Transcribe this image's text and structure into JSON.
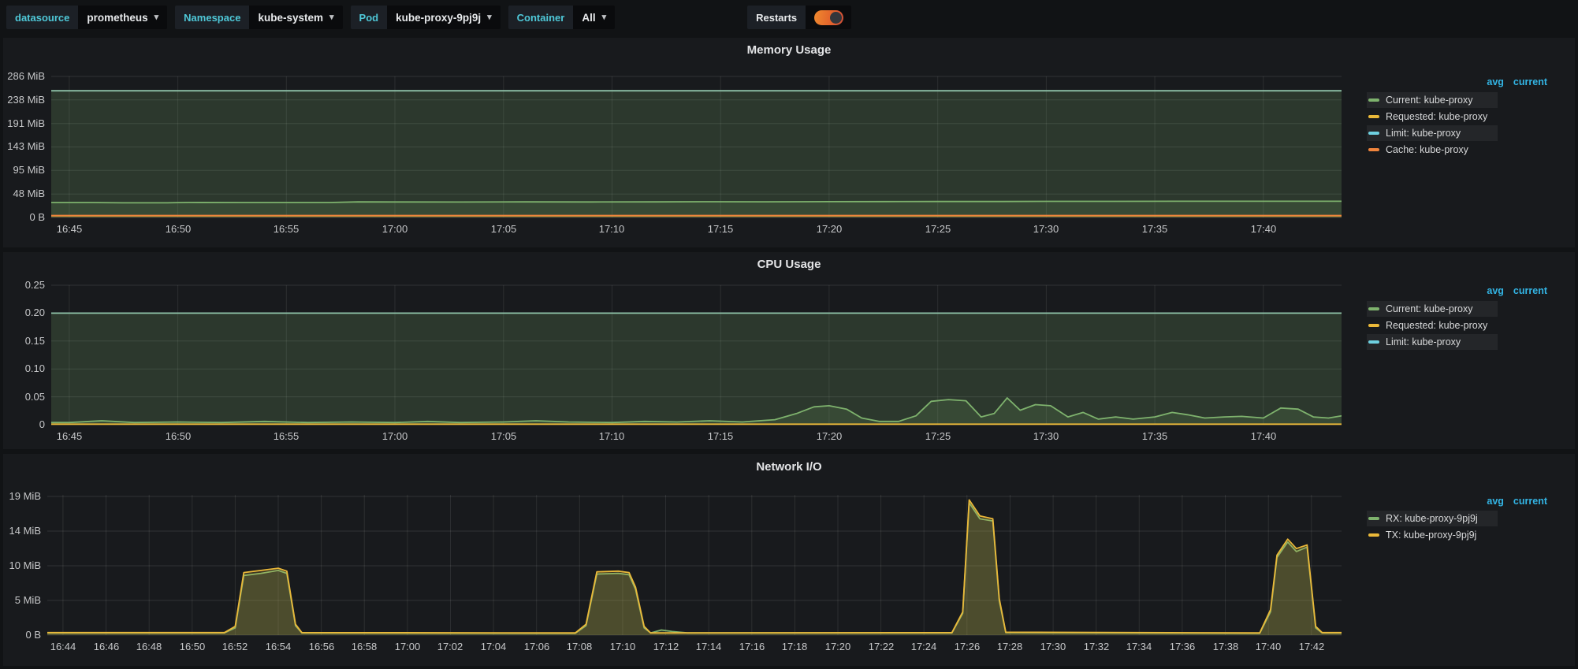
{
  "topbar": {
    "controls": [
      {
        "label": "datasource",
        "value": "prometheus"
      },
      {
        "label": "Namespace",
        "value": "kube-system"
      },
      {
        "label": "Pod",
        "value": "kube-proxy-9pj9j"
      },
      {
        "label": "Container",
        "value": "All"
      }
    ],
    "restarts": {
      "label": "Restarts",
      "enabled": true
    }
  },
  "legend_header": [
    "avg",
    "current"
  ],
  "colors": {
    "green": "#7EB26D",
    "yellow": "#EAB839",
    "cyan": "#6ED0E0",
    "orange": "#EF843C",
    "limit_line": "#8FC3A9",
    "link": "#33B5E5",
    "var_label": "#4FC8D8"
  },
  "chart_data": [
    {
      "type": "area",
      "title": "Memory Usage",
      "y_unit": "MiB",
      "x_unit": "minutes after 16:00",
      "ymax": 286.1,
      "xmin": 44.17,
      "xmax": 103.6,
      "grid": true,
      "legend_position": "right",
      "yticks": [
        {
          "v": 0,
          "label": "0 B"
        },
        {
          "v": 47.7,
          "label": "48 MiB"
        },
        {
          "v": 95.4,
          "label": "95 MiB"
        },
        {
          "v": 143.1,
          "label": "143 MiB"
        },
        {
          "v": 190.7,
          "label": "191 MiB"
        },
        {
          "v": 238.4,
          "label": "238 MiB"
        },
        {
          "v": 286.1,
          "label": "286 MiB"
        }
      ],
      "xticks": [
        {
          "m": 45,
          "label": "16:45"
        },
        {
          "m": 50,
          "label": "16:50"
        },
        {
          "m": 55,
          "label": "16:55"
        },
        {
          "m": 60,
          "label": "17:00"
        },
        {
          "m": 65,
          "label": "17:05"
        },
        {
          "m": 70,
          "label": "17:10"
        },
        {
          "m": 75,
          "label": "17:15"
        },
        {
          "m": 80,
          "label": "17:20"
        },
        {
          "m": 85,
          "label": "17:25"
        },
        {
          "m": 90,
          "label": "17:30"
        },
        {
          "m": 95,
          "label": "17:35"
        },
        {
          "m": 100,
          "label": "17:40"
        }
      ],
      "legend": [
        {
          "label": "Current: kube-proxy",
          "color": "#7EB26D"
        },
        {
          "label": "Requested: kube-proxy",
          "color": "#EAB839"
        },
        {
          "label": "Limit: kube-proxy",
          "color": "#6ED0E0"
        },
        {
          "label": "Cache: kube-proxy",
          "color": "#EF843C"
        }
      ],
      "series": [
        {
          "name": "Limit: kube-proxy",
          "line": "#8FC3A9",
          "fill": "#7EB26D",
          "fill_opacity": 0.2,
          "points": [
            [
              44.17,
              257
            ],
            [
              103.6,
              257
            ]
          ]
        },
        {
          "name": "Current: kube-proxy",
          "line": "#7EB26D",
          "fill": "#7EB26D",
          "fill_opacity": 0.14,
          "points": [
            [
              44.17,
              30.3
            ],
            [
              46,
              30.3
            ],
            [
              47.5,
              29.8
            ],
            [
              49.5,
              29.8
            ],
            [
              50.5,
              30.5
            ],
            [
              53,
              30.3
            ],
            [
              55,
              30.3
            ],
            [
              57,
              30.4
            ],
            [
              58.3,
              31.6
            ],
            [
              60,
              31.5
            ],
            [
              63,
              31.4
            ],
            [
              66,
              31.6
            ],
            [
              69,
              31.5
            ],
            [
              72,
              31.6
            ],
            [
              74.5,
              31.9
            ],
            [
              77,
              31.8
            ],
            [
              80,
              32.1
            ],
            [
              82.5,
              32.3
            ],
            [
              85,
              32.5
            ],
            [
              88,
              32.5
            ],
            [
              90,
              32.8
            ],
            [
              93,
              32.8
            ],
            [
              96,
              32.9
            ],
            [
              99,
              33
            ],
            [
              102,
              33
            ],
            [
              103.6,
              33
            ]
          ]
        },
        {
          "name": "Requested: kube-proxy",
          "line": "#EAB839",
          "fill": "#EAB839",
          "fill_opacity": 0.08,
          "points": [
            [
              44.17,
              3.4
            ],
            [
              103.6,
              3.4
            ]
          ]
        },
        {
          "name": "Cache: kube-proxy",
          "line": "#EF843C",
          "fill": "#EF843C",
          "fill_opacity": 0.08,
          "points": [
            [
              44.17,
              4.0
            ],
            [
              103.6,
              4.0
            ]
          ]
        }
      ]
    },
    {
      "type": "area",
      "title": "CPU Usage",
      "y_unit": "cores",
      "x_unit": "minutes after 16:00",
      "ymax": 0.25,
      "xmin": 44.17,
      "xmax": 103.6,
      "grid": true,
      "legend_position": "right",
      "yticks": [
        {
          "v": 0,
          "label": "0"
        },
        {
          "v": 0.05,
          "label": "0.05"
        },
        {
          "v": 0.1,
          "label": "0.10"
        },
        {
          "v": 0.15,
          "label": "0.15"
        },
        {
          "v": 0.2,
          "label": "0.20"
        },
        {
          "v": 0.25,
          "label": "0.25"
        }
      ],
      "xticks": [
        {
          "m": 45,
          "label": "16:45"
        },
        {
          "m": 50,
          "label": "16:50"
        },
        {
          "m": 55,
          "label": "16:55"
        },
        {
          "m": 60,
          "label": "17:00"
        },
        {
          "m": 65,
          "label": "17:05"
        },
        {
          "m": 70,
          "label": "17:10"
        },
        {
          "m": 75,
          "label": "17:15"
        },
        {
          "m": 80,
          "label": "17:20"
        },
        {
          "m": 85,
          "label": "17:25"
        },
        {
          "m": 90,
          "label": "17:30"
        },
        {
          "m": 95,
          "label": "17:35"
        },
        {
          "m": 100,
          "label": "17:40"
        }
      ],
      "legend": [
        {
          "label": "Current: kube-proxy",
          "color": "#7EB26D"
        },
        {
          "label": "Requested: kube-proxy",
          "color": "#EAB839"
        },
        {
          "label": "Limit: kube-proxy",
          "color": "#6ED0E0"
        }
      ],
      "series": [
        {
          "name": "Limit: kube-proxy",
          "line": "#8FC3A9",
          "fill": "#7EB26D",
          "fill_opacity": 0.2,
          "points": [
            [
              44.17,
              0.2
            ],
            [
              103.6,
              0.2
            ]
          ]
        },
        {
          "name": "Current: kube-proxy",
          "line": "#7EB26D",
          "fill": "#7EB26D",
          "fill_opacity": 0.14,
          "points": [
            [
              44.17,
              0.004
            ],
            [
              45,
              0.004
            ],
            [
              46.5,
              0.007
            ],
            [
              48,
              0.004
            ],
            [
              50,
              0.005
            ],
            [
              52,
              0.004
            ],
            [
              54,
              0.006
            ],
            [
              56,
              0.004
            ],
            [
              58,
              0.005
            ],
            [
              60,
              0.004
            ],
            [
              61.5,
              0.006
            ],
            [
              63,
              0.004
            ],
            [
              65,
              0.005
            ],
            [
              66.5,
              0.007
            ],
            [
              68,
              0.005
            ],
            [
              70,
              0.004
            ],
            [
              71.5,
              0.006
            ],
            [
              73,
              0.005
            ],
            [
              74.5,
              0.007
            ],
            [
              76,
              0.005
            ],
            [
              77.5,
              0.009
            ],
            [
              78.5,
              0.02
            ],
            [
              79.3,
              0.032
            ],
            [
              80,
              0.034
            ],
            [
              80.8,
              0.028
            ],
            [
              81.5,
              0.012
            ],
            [
              82.3,
              0.006
            ],
            [
              83.2,
              0.006
            ],
            [
              84,
              0.016
            ],
            [
              84.7,
              0.042
            ],
            [
              85.5,
              0.045
            ],
            [
              86.3,
              0.043
            ],
            [
              87,
              0.014
            ],
            [
              87.6,
              0.02
            ],
            [
              88.2,
              0.048
            ],
            [
              88.8,
              0.026
            ],
            [
              89.5,
              0.036
            ],
            [
              90.2,
              0.034
            ],
            [
              91,
              0.014
            ],
            [
              91.7,
              0.022
            ],
            [
              92.4,
              0.01
            ],
            [
              93.2,
              0.014
            ],
            [
              94,
              0.01
            ],
            [
              95,
              0.014
            ],
            [
              95.8,
              0.022
            ],
            [
              96.5,
              0.018
            ],
            [
              97.3,
              0.012
            ],
            [
              98.2,
              0.014
            ],
            [
              99,
              0.015
            ],
            [
              100,
              0.012
            ],
            [
              100.8,
              0.03
            ],
            [
              101.6,
              0.028
            ],
            [
              102.3,
              0.014
            ],
            [
              103,
              0.012
            ],
            [
              103.6,
              0.016
            ]
          ]
        },
        {
          "name": "Requested: kube-proxy",
          "line": "#EAB839",
          "fill": "#EAB839",
          "fill_opacity": 0.08,
          "points": [
            [
              44.17,
              0.001
            ],
            [
              103.6,
              0.001
            ]
          ]
        }
      ]
    },
    {
      "type": "area",
      "title": "Network I/O",
      "y_unit": "MiB",
      "x_unit": "minutes after 16:00",
      "ymax": 19.29,
      "xmin": 43.27,
      "xmax": 103.4,
      "grid": true,
      "legend_position": "right",
      "yticks": [
        {
          "v": 0,
          "label": "0 B"
        },
        {
          "v": 4.77,
          "label": "5 MiB"
        },
        {
          "v": 9.54,
          "label": "10 MiB"
        },
        {
          "v": 14.31,
          "label": "14 MiB"
        },
        {
          "v": 19.07,
          "label": "19 MiB"
        }
      ],
      "xticks": [
        {
          "m": 44,
          "label": "16:44"
        },
        {
          "m": 46,
          "label": "16:46"
        },
        {
          "m": 48,
          "label": "16:48"
        },
        {
          "m": 50,
          "label": "16:50"
        },
        {
          "m": 52,
          "label": "16:52"
        },
        {
          "m": 54,
          "label": "16:54"
        },
        {
          "m": 56,
          "label": "16:56"
        },
        {
          "m": 58,
          "label": "16:58"
        },
        {
          "m": 60,
          "label": "17:00"
        },
        {
          "m": 62,
          "label": "17:02"
        },
        {
          "m": 64,
          "label": "17:04"
        },
        {
          "m": 66,
          "label": "17:06"
        },
        {
          "m": 68,
          "label": "17:08"
        },
        {
          "m": 70,
          "label": "17:10"
        },
        {
          "m": 72,
          "label": "17:12"
        },
        {
          "m": 74,
          "label": "17:14"
        },
        {
          "m": 76,
          "label": "17:16"
        },
        {
          "m": 78,
          "label": "17:18"
        },
        {
          "m": 80,
          "label": "17:20"
        },
        {
          "m": 82,
          "label": "17:22"
        },
        {
          "m": 84,
          "label": "17:24"
        },
        {
          "m": 86,
          "label": "17:26"
        },
        {
          "m": 88,
          "label": "17:28"
        },
        {
          "m": 90,
          "label": "17:30"
        },
        {
          "m": 92,
          "label": "17:32"
        },
        {
          "m": 94,
          "label": "17:34"
        },
        {
          "m": 96,
          "label": "17:36"
        },
        {
          "m": 98,
          "label": "17:38"
        },
        {
          "m": 100,
          "label": "17:40"
        },
        {
          "m": 102,
          "label": "17:42"
        }
      ],
      "legend": [
        {
          "label": "RX: kube-proxy-9pj9j",
          "color": "#7EB26D"
        },
        {
          "label": "TX: kube-proxy-9pj9j",
          "color": "#EAB839"
        }
      ],
      "series": [
        {
          "name": "RX: kube-proxy-9pj9j",
          "line": "#7EB26D",
          "fill": "#7EB26D",
          "fill_opacity": 0.18,
          "points": [
            [
              43.27,
              0.3
            ],
            [
              51.5,
              0.3
            ],
            [
              52.0,
              1.0
            ],
            [
              52.4,
              8.2
            ],
            [
              53.2,
              8.5
            ],
            [
              54.0,
              8.9
            ],
            [
              54.4,
              8.5
            ],
            [
              54.8,
              1.3
            ],
            [
              55.1,
              0.3
            ],
            [
              67.8,
              0.25
            ],
            [
              68.3,
              1.3
            ],
            [
              68.8,
              8.4
            ],
            [
              69.8,
              8.5
            ],
            [
              70.3,
              8.3
            ],
            [
              70.6,
              6.3
            ],
            [
              71.0,
              1.0
            ],
            [
              71.3,
              0.3
            ],
            [
              71.8,
              0.7
            ],
            [
              72.3,
              0.5
            ],
            [
              73,
              0.3
            ],
            [
              85.3,
              0.3
            ],
            [
              85.8,
              3.0
            ],
            [
              86.1,
              18.2
            ],
            [
              86.6,
              16.0
            ],
            [
              87.2,
              15.7
            ],
            [
              87.5,
              4.7
            ],
            [
              87.8,
              0.35
            ],
            [
              99.6,
              0.25
            ],
            [
              100.1,
              3.2
            ],
            [
              100.4,
              10.7
            ],
            [
              100.9,
              12.8
            ],
            [
              101.3,
              11.5
            ],
            [
              101.8,
              12.1
            ],
            [
              102.2,
              1.0
            ],
            [
              102.5,
              0.3
            ],
            [
              103.4,
              0.3
            ]
          ]
        },
        {
          "name": "TX: kube-proxy-9pj9j",
          "line": "#EAB839",
          "fill": "#EAB839",
          "fill_opacity": 0.18,
          "points": [
            [
              43.27,
              0.35
            ],
            [
              51.5,
              0.35
            ],
            [
              52.0,
              1.2
            ],
            [
              52.4,
              8.6
            ],
            [
              53.2,
              8.9
            ],
            [
              54.0,
              9.2
            ],
            [
              54.4,
              8.8
            ],
            [
              54.8,
              1.5
            ],
            [
              55.1,
              0.35
            ],
            [
              67.8,
              0.3
            ],
            [
              68.3,
              1.5
            ],
            [
              68.8,
              8.7
            ],
            [
              69.8,
              8.8
            ],
            [
              70.3,
              8.6
            ],
            [
              70.6,
              6.6
            ],
            [
              71.0,
              1.2
            ],
            [
              71.3,
              0.3
            ],
            [
              85.3,
              0.35
            ],
            [
              85.8,
              3.2
            ],
            [
              86.1,
              18.6
            ],
            [
              86.6,
              16.4
            ],
            [
              87.2,
              16.0
            ],
            [
              87.5,
              5.0
            ],
            [
              87.8,
              0.4
            ],
            [
              99.6,
              0.3
            ],
            [
              100.1,
              3.5
            ],
            [
              100.4,
              11.0
            ],
            [
              100.9,
              13.2
            ],
            [
              101.3,
              11.9
            ],
            [
              101.8,
              12.4
            ],
            [
              102.2,
              1.2
            ],
            [
              102.5,
              0.35
            ],
            [
              103.4,
              0.35
            ]
          ]
        }
      ]
    }
  ]
}
